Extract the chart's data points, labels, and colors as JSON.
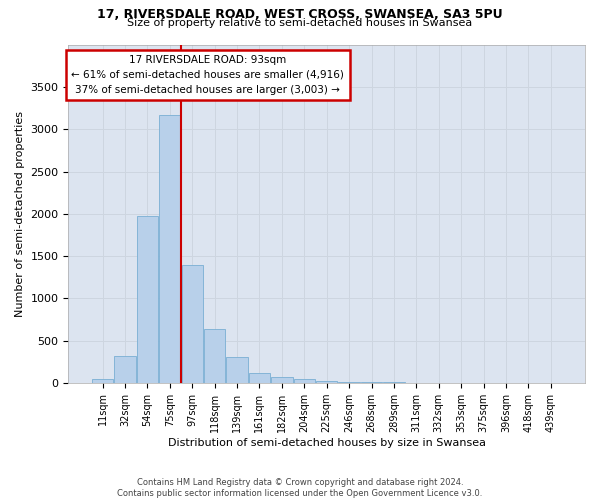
{
  "title": "17, RIVERSDALE ROAD, WEST CROSS, SWANSEA, SA3 5PU",
  "subtitle": "Size of property relative to semi-detached houses in Swansea",
  "xlabel": "Distribution of semi-detached houses by size in Swansea",
  "ylabel": "Number of semi-detached properties",
  "bin_labels": [
    "11sqm",
    "32sqm",
    "54sqm",
    "75sqm",
    "97sqm",
    "118sqm",
    "139sqm",
    "161sqm",
    "182sqm",
    "204sqm",
    "225sqm",
    "246sqm",
    "268sqm",
    "289sqm",
    "311sqm",
    "332sqm",
    "353sqm",
    "375sqm",
    "396sqm",
    "418sqm",
    "439sqm"
  ],
  "bar_values": [
    50,
    320,
    1970,
    3170,
    1400,
    640,
    300,
    110,
    65,
    45,
    20,
    10,
    5,
    3,
    2,
    1,
    1,
    0,
    0,
    0,
    0
  ],
  "bar_color": "#b8d0ea",
  "bar_edge_color": "#7aafd4",
  "vline_position": 3.5,
  "annotation_text": "17 RIVERSDALE ROAD: 93sqm\n← 61% of semi-detached houses are smaller (4,916)\n37% of semi-detached houses are larger (3,003) →",
  "annotation_box_facecolor": "#ffffff",
  "annotation_box_edgecolor": "#cc0000",
  "vline_color": "#cc0000",
  "ylim_max": 4000,
  "yticks": [
    0,
    500,
    1000,
    1500,
    2000,
    2500,
    3000,
    3500
  ],
  "grid_color": "#cdd5e0",
  "plot_bg_color": "#dce4f0",
  "footnote": "Contains HM Land Registry data © Crown copyright and database right 2024.\nContains public sector information licensed under the Open Government Licence v3.0."
}
